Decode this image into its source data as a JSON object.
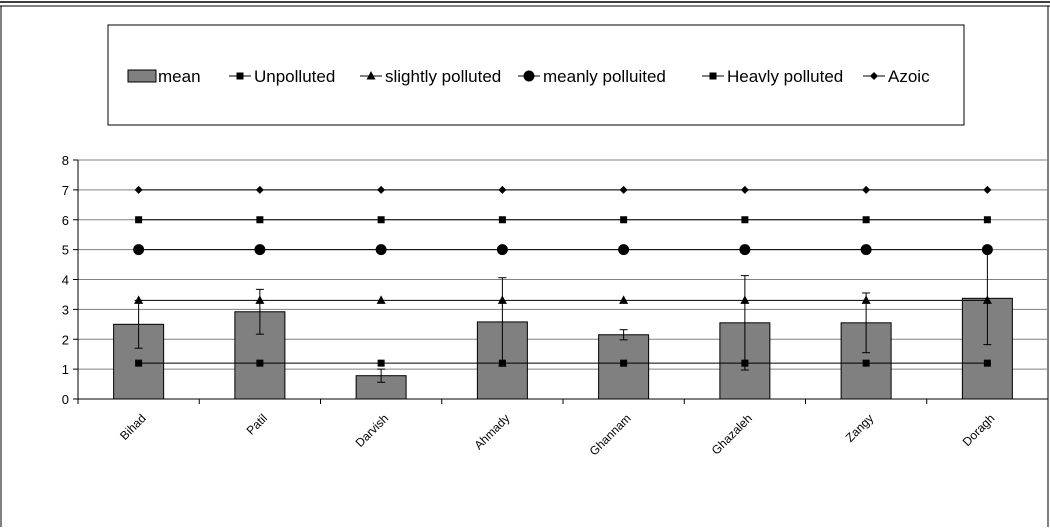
{
  "chart_data": {
    "type": "bar",
    "categories": [
      "Bihad",
      "Patil",
      "Darvish",
      "Ahmady",
      "Ghannam",
      "Ghazaleh",
      "Zangy",
      "Doragh"
    ],
    "ylim": [
      0,
      8
    ],
    "yticks": [
      0,
      1,
      2,
      3,
      4,
      5,
      6,
      7,
      8
    ],
    "grid": "horizontal",
    "legend_position": "top",
    "bar_series": {
      "name": "mean",
      "color": "#808080",
      "values": [
        2.5,
        2.92,
        0.78,
        2.58,
        2.15,
        2.55,
        2.55,
        3.37
      ],
      "error": [
        0.8,
        0.75,
        0.22,
        1.48,
        0.17,
        1.58,
        1.0,
        1.55
      ]
    },
    "line_series": [
      {
        "name": "Unpolluted",
        "marker": "square",
        "value": 1.2,
        "values": [
          1.2,
          1.2,
          1.2,
          1.2,
          1.2,
          1.2,
          1.2,
          1.2
        ]
      },
      {
        "name": "slightly polluted",
        "marker": "triangle",
        "value": 3.3,
        "values": [
          3.3,
          3.3,
          3.3,
          3.3,
          3.3,
          3.3,
          3.3,
          3.3
        ]
      },
      {
        "name": "meanly polluited",
        "marker": "circle",
        "value": 5,
        "values": [
          5,
          5,
          5,
          5,
          5,
          5,
          5,
          5
        ]
      },
      {
        "name": "Heavly polluted",
        "marker": "square",
        "value": 6,
        "values": [
          6,
          6,
          6,
          6,
          6,
          6,
          6,
          6
        ]
      },
      {
        "name": "Azoic",
        "marker": "diamond",
        "value": 7,
        "values": [
          7,
          7,
          7,
          7,
          7,
          7,
          7,
          7
        ]
      }
    ]
  }
}
